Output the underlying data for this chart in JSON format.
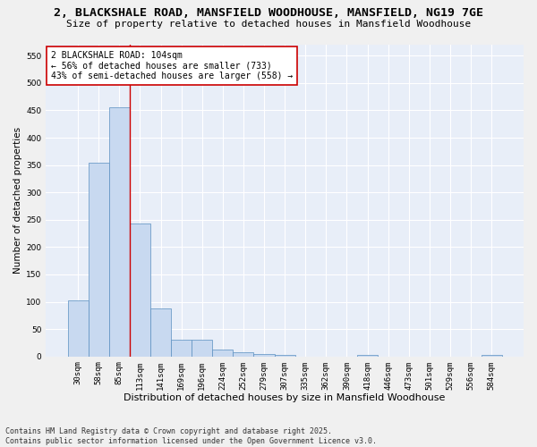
{
  "title": "2, BLACKSHALE ROAD, MANSFIELD WOODHOUSE, MANSFIELD, NG19 7GE",
  "subtitle": "Size of property relative to detached houses in Mansfield Woodhouse",
  "xlabel": "Distribution of detached houses by size in Mansfield Woodhouse",
  "ylabel": "Number of detached properties",
  "categories": [
    "30sqm",
    "58sqm",
    "85sqm",
    "113sqm",
    "141sqm",
    "169sqm",
    "196sqm",
    "224sqm",
    "252sqm",
    "279sqm",
    "307sqm",
    "335sqm",
    "362sqm",
    "390sqm",
    "418sqm",
    "446sqm",
    "473sqm",
    "501sqm",
    "529sqm",
    "556sqm",
    "584sqm"
  ],
  "values": [
    103,
    355,
    455,
    243,
    87,
    30,
    30,
    12,
    7,
    5,
    3,
    0,
    0,
    0,
    3,
    0,
    0,
    0,
    0,
    0,
    3
  ],
  "bar_color": "#c8d9f0",
  "bar_edge_color": "#5a8fc0",
  "vline_x_index": 2.5,
  "vline_color": "#cc0000",
  "annotation_text": "2 BLACKSHALE ROAD: 104sqm\n← 56% of detached houses are smaller (733)\n43% of semi-detached houses are larger (558) →",
  "annotation_box_color": "#ffffff",
  "annotation_box_edge": "#cc0000",
  "ylim": [
    0,
    570
  ],
  "yticks": [
    0,
    50,
    100,
    150,
    200,
    250,
    300,
    350,
    400,
    450,
    500,
    550
  ],
  "footer": "Contains HM Land Registry data © Crown copyright and database right 2025.\nContains public sector information licensed under the Open Government Licence v3.0.",
  "fig_background_color": "#f0f0f0",
  "plot_background_color": "#e8eef8",
  "grid_color": "#ffffff",
  "title_fontsize": 9.5,
  "subtitle_fontsize": 8,
  "xlabel_fontsize": 8,
  "ylabel_fontsize": 7.5,
  "tick_fontsize": 6.5,
  "footer_fontsize": 6,
  "annotation_fontsize": 7
}
